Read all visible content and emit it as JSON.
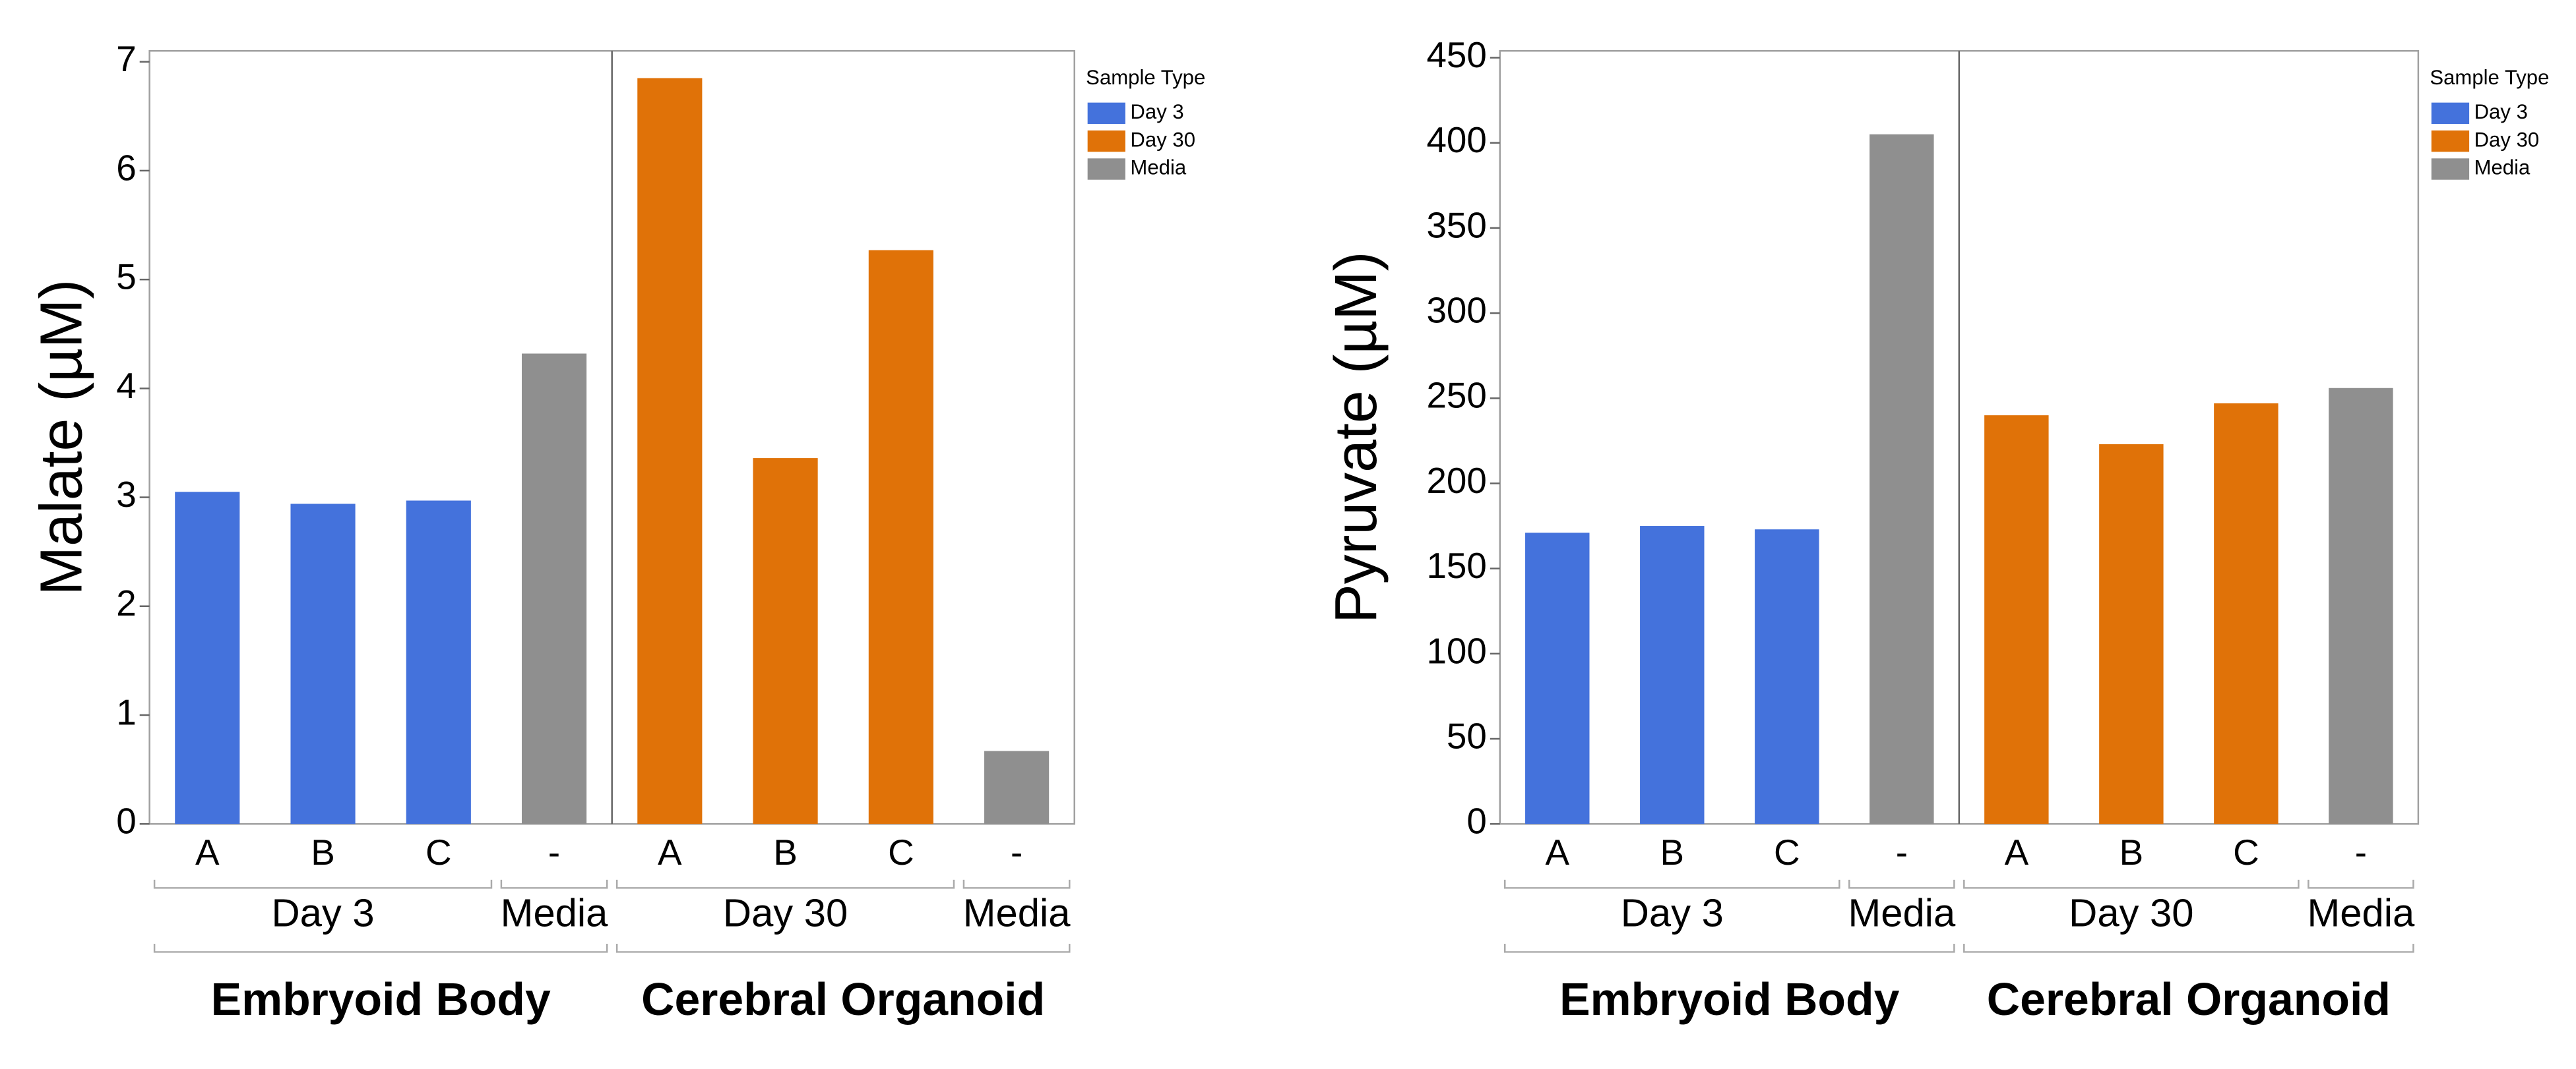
{
  "chart_data": [
    {
      "type": "bar",
      "y_label": "Malate (µM)",
      "legend_title": "Sample Type",
      "categories": [
        "A",
        "B",
        "C",
        "-",
        "A",
        "B",
        "C",
        "-"
      ],
      "group_labels": [
        "Day 3",
        "Day 3",
        "Day 3",
        "Media",
        "Day 30",
        "Day 30",
        "Day 30",
        "Media"
      ],
      "super_group_labels": [
        "Embryoid Body",
        "Embryoid Body",
        "Embryoid Body",
        "Embryoid Body",
        "Cerebral Organoid",
        "Cerebral Organoid",
        "Cerebral Organoid",
        "Cerebral Organoid"
      ],
      "series": [
        {
          "name": "Day 3",
          "color": "#4472dc",
          "values": [
            3.05,
            2.94,
            2.97,
            null,
            null,
            null,
            null,
            null
          ]
        },
        {
          "name": "Day 30",
          "color": "#e07208",
          "values": [
            null,
            null,
            null,
            null,
            6.85,
            3.36,
            5.27,
            null
          ]
        },
        {
          "name": "Media",
          "color": "#8f8f8f",
          "values": [
            null,
            null,
            null,
            4.32,
            null,
            null,
            null,
            0.67
          ]
        }
      ],
      "ylim": [
        0,
        7.1
      ],
      "yticks": [
        0,
        1,
        2,
        3,
        4,
        5,
        6,
        7
      ],
      "grid": false
    },
    {
      "type": "bar",
      "y_label": "Pyruvate (µM)",
      "legend_title": "Sample Type",
      "categories": [
        "A",
        "B",
        "C",
        "-",
        "A",
        "B",
        "C",
        "-"
      ],
      "group_labels": [
        "Day 3",
        "Day 3",
        "Day 3",
        "Media",
        "Day 30",
        "Day 30",
        "Day 30",
        "Media"
      ],
      "super_group_labels": [
        "Embryoid Body",
        "Embryoid Body",
        "Embryoid Body",
        "Embryoid Body",
        "Cerebral Organoid",
        "Cerebral Organoid",
        "Cerebral Organoid",
        "Cerebral Organoid"
      ],
      "series": [
        {
          "name": "Day 3",
          "color": "#4472dc",
          "values": [
            171,
            175,
            173,
            null,
            null,
            null,
            null,
            null
          ]
        },
        {
          "name": "Day 30",
          "color": "#e07208",
          "values": [
            null,
            null,
            null,
            null,
            240,
            223,
            247,
            null
          ]
        },
        {
          "name": "Media",
          "color": "#8f8f8f",
          "values": [
            null,
            null,
            null,
            405,
            null,
            null,
            null,
            256
          ]
        }
      ],
      "ylim": [
        0,
        454
      ],
      "yticks": [
        0,
        50,
        100,
        150,
        200,
        250,
        300,
        350,
        400,
        450
      ],
      "grid": false
    }
  ]
}
